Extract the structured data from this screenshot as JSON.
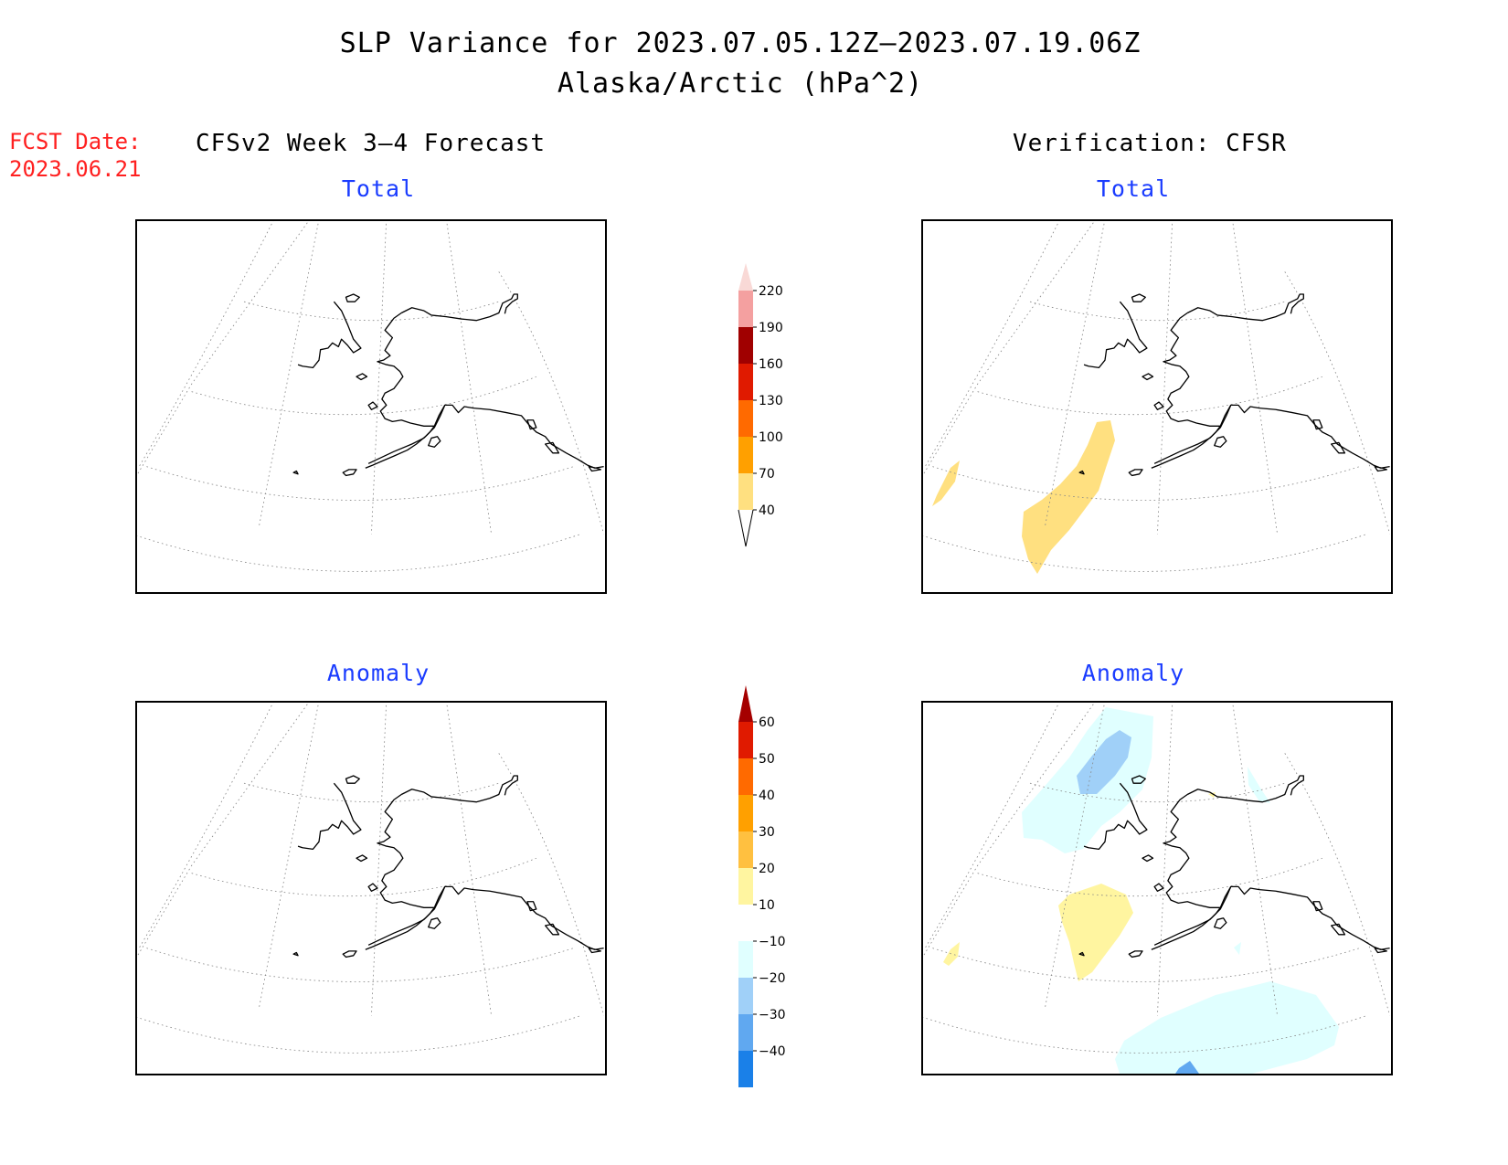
{
  "header": {
    "title_line1": "SLP Variance for 2023.07.05.12Z—2023.07.19.06Z",
    "title_line2": "Alaska/Arctic (hPa^2)"
  },
  "fcst": {
    "label": "FCST Date:",
    "date": "2023.06.21"
  },
  "columns": {
    "left_heading": "CFSv2 Week 3—4 Forecast",
    "right_heading": "Verification: CFSR"
  },
  "panels": {
    "top_left_title": "Total",
    "top_right_title": "Total",
    "bottom_left_title": "Anomaly",
    "bottom_right_title": "Anomaly"
  },
  "colorbar_total": {
    "levels": [
      "220",
      "190",
      "160",
      "130",
      "100",
      "70",
      "40"
    ],
    "colors": [
      "#f9d9d6",
      "#f4a0a0",
      "#a00000",
      "#e01a00",
      "#ff6a00",
      "#ffa000",
      "#ffe080"
    ]
  },
  "colorbar_anomaly": {
    "levels": [
      "60",
      "50",
      "40",
      "30",
      "20",
      "10",
      "−10",
      "−20",
      "−30",
      "−40"
    ],
    "colors": [
      "#a50000",
      "#e01a00",
      "#ff6a00",
      "#ffa000",
      "#ffc040",
      "#fff5a0",
      "#ffffff",
      "#e0ffff",
      "#a0d0f8",
      "#60a8f0",
      "#1a80e8",
      "#1060d0"
    ]
  },
  "fills": {
    "total_yellow": "#ffe080",
    "anom_yellow": "#fff5a0",
    "anom_lightcyan": "#e0ffff",
    "anom_blue": "#a0d0f8",
    "anom_deepblue": "#60a8f0"
  }
}
